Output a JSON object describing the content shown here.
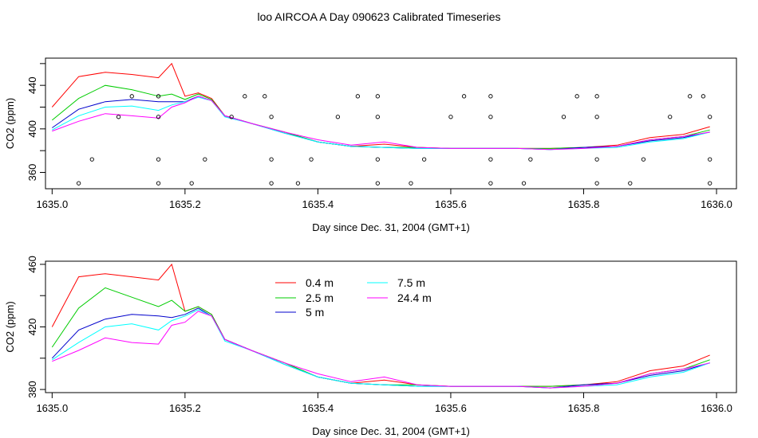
{
  "figure": {
    "title": "loo AIRCOA A  Day 090623  Calibrated Timeseries"
  },
  "chart_data": [
    {
      "type": "line",
      "xlabel": "Day since Dec. 31, 2004 (GMT+1)",
      "ylabel": "CO2 (ppm)",
      "xlim": [
        1634.99,
        1636.03
      ],
      "ylim": [
        345,
        465
      ],
      "x_ticks": [
        1635.0,
        1635.2,
        1635.4,
        1635.6,
        1635.8,
        1636.0
      ],
      "x_tick_labels": [
        "1635.0",
        "1635.2",
        "1635.4",
        "1635.6",
        "1635.8",
        "1636.0"
      ],
      "y_ticks": [
        360,
        380,
        400,
        420,
        440,
        460
      ],
      "y_tick_labels": [
        "360",
        "",
        "400",
        "",
        "440",
        ""
      ],
      "grid": false,
      "legend": "none",
      "x": [
        1635.0,
        1635.04,
        1635.08,
        1635.12,
        1635.16,
        1635.18,
        1635.2,
        1635.22,
        1635.24,
        1635.26,
        1635.3,
        1635.35,
        1635.4,
        1635.45,
        1635.5,
        1635.55,
        1635.6,
        1635.65,
        1635.7,
        1635.75,
        1635.8,
        1635.85,
        1635.9,
        1635.95,
        1635.99
      ],
      "series": [
        {
          "name": "0.4 m",
          "color": "#ff0000",
          "values": [
            420,
            448,
            452,
            450,
            447,
            460,
            430,
            433,
            428,
            412,
            405,
            397,
            388,
            384,
            386,
            383,
            382,
            382,
            382,
            382,
            383,
            385,
            392,
            395,
            402
          ]
        },
        {
          "name": "2.5 m",
          "color": "#00cc00",
          "values": [
            408,
            428,
            440,
            436,
            430,
            432,
            427,
            432,
            427,
            412,
            405,
            397,
            388,
            384,
            383,
            383,
            382,
            382,
            382,
            382,
            383,
            384,
            390,
            393,
            399
          ]
        },
        {
          "name": "5 m",
          "color": "#0000cc",
          "values": [
            401,
            418,
            425,
            427,
            425,
            425,
            425,
            430,
            426,
            412,
            405,
            396,
            388,
            384,
            383,
            382,
            382,
            382,
            382,
            381,
            383,
            384,
            389,
            392,
            397
          ]
        },
        {
          "name": "7.5 m",
          "color": "#00ffff",
          "values": [
            399,
            412,
            420,
            421,
            417,
            422,
            425,
            429,
            426,
            411,
            405,
            396,
            388,
            384,
            383,
            382,
            382,
            382,
            382,
            381,
            382,
            383,
            388,
            391,
            397
          ]
        },
        {
          "name": "24.4 m",
          "color": "#ff00ff",
          "values": [
            398,
            407,
            414,
            412,
            410,
            420,
            424,
            430,
            426,
            412,
            405,
            397,
            390,
            385,
            388,
            383,
            382,
            382,
            382,
            381,
            382,
            384,
            390,
            393,
            397
          ]
        }
      ],
      "markers": {
        "symbol": "open circle",
        "points": [
          [
            1635.04,
            350
          ],
          [
            1635.06,
            372
          ],
          [
            1635.1,
            411
          ],
          [
            1635.12,
            430
          ],
          [
            1635.16,
            350
          ],
          [
            1635.16,
            372
          ],
          [
            1635.16,
            411
          ],
          [
            1635.16,
            430
          ],
          [
            1635.21,
            350
          ],
          [
            1635.23,
            372
          ],
          [
            1635.27,
            411
          ],
          [
            1635.29,
            430
          ],
          [
            1635.32,
            430
          ],
          [
            1635.33,
            411
          ],
          [
            1635.33,
            372
          ],
          [
            1635.33,
            350
          ],
          [
            1635.37,
            350
          ],
          [
            1635.39,
            372
          ],
          [
            1635.43,
            411
          ],
          [
            1635.46,
            430
          ],
          [
            1635.49,
            350
          ],
          [
            1635.49,
            372
          ],
          [
            1635.49,
            411
          ],
          [
            1635.49,
            430
          ],
          [
            1635.54,
            350
          ],
          [
            1635.56,
            372
          ],
          [
            1635.6,
            411
          ],
          [
            1635.62,
            430
          ],
          [
            1635.66,
            430
          ],
          [
            1635.66,
            411
          ],
          [
            1635.66,
            372
          ],
          [
            1635.66,
            350
          ],
          [
            1635.71,
            350
          ],
          [
            1635.72,
            372
          ],
          [
            1635.77,
            411
          ],
          [
            1635.79,
            430
          ],
          [
            1635.82,
            430
          ],
          [
            1635.82,
            411
          ],
          [
            1635.82,
            372
          ],
          [
            1635.82,
            350
          ],
          [
            1635.87,
            350
          ],
          [
            1635.89,
            372
          ],
          [
            1635.93,
            411
          ],
          [
            1635.96,
            430
          ],
          [
            1635.98,
            430
          ],
          [
            1635.99,
            411
          ],
          [
            1635.99,
            372
          ],
          [
            1635.99,
            350
          ]
        ]
      }
    },
    {
      "type": "line",
      "xlabel": "Day since Dec. 31, 2004 (GMT+1)",
      "ylabel": "CO2 (ppm)",
      "xlim": [
        1634.99,
        1636.03
      ],
      "ylim": [
        378,
        462
      ],
      "x_ticks": [
        1635.0,
        1635.2,
        1635.4,
        1635.6,
        1635.8,
        1636.0
      ],
      "x_tick_labels": [
        "1635.0",
        "1635.2",
        "1635.4",
        "1635.6",
        "1635.8",
        "1636.0"
      ],
      "y_ticks": [
        380,
        400,
        420,
        440,
        460
      ],
      "y_tick_labels": [
        "380",
        "",
        "420",
        "",
        "460"
      ],
      "grid": false,
      "legend": "upper-center",
      "x": [
        1635.0,
        1635.04,
        1635.08,
        1635.12,
        1635.16,
        1635.18,
        1635.2,
        1635.22,
        1635.24,
        1635.26,
        1635.3,
        1635.35,
        1635.4,
        1635.45,
        1635.5,
        1635.55,
        1635.6,
        1635.65,
        1635.7,
        1635.75,
        1635.8,
        1635.85,
        1635.9,
        1635.95,
        1635.99
      ],
      "series": [
        {
          "name": "0.4 m",
          "color": "#ff0000",
          "values": [
            420,
            452,
            454,
            452,
            450,
            460,
            430,
            433,
            428,
            412,
            405,
            397,
            388,
            384,
            386,
            383,
            382,
            382,
            382,
            382,
            383,
            385,
            392,
            395,
            402
          ]
        },
        {
          "name": "2.5 m",
          "color": "#00cc00",
          "values": [
            407,
            432,
            445,
            439,
            433,
            437,
            430,
            433,
            428,
            412,
            405,
            397,
            388,
            384,
            383,
            383,
            382,
            382,
            382,
            382,
            383,
            384,
            390,
            393,
            399
          ]
        },
        {
          "name": "5 m",
          "color": "#0000cc",
          "values": [
            400,
            418,
            425,
            428,
            427,
            426,
            428,
            432,
            427,
            412,
            405,
            396,
            388,
            384,
            383,
            382,
            382,
            382,
            382,
            381,
            383,
            384,
            389,
            392,
            397
          ]
        },
        {
          "name": "7.5 m",
          "color": "#00ffff",
          "values": [
            399,
            410,
            420,
            422,
            418,
            424,
            427,
            431,
            427,
            411,
            405,
            396,
            388,
            384,
            383,
            382,
            382,
            382,
            382,
            381,
            382,
            383,
            388,
            391,
            397
          ]
        },
        {
          "name": "24.4 m",
          "color": "#ff00ff",
          "values": [
            398,
            405,
            413,
            410,
            409,
            421,
            423,
            430,
            427,
            412,
            405,
            397,
            390,
            385,
            388,
            383,
            382,
            382,
            382,
            381,
            382,
            384,
            390,
            393,
            397
          ]
        }
      ]
    }
  ]
}
